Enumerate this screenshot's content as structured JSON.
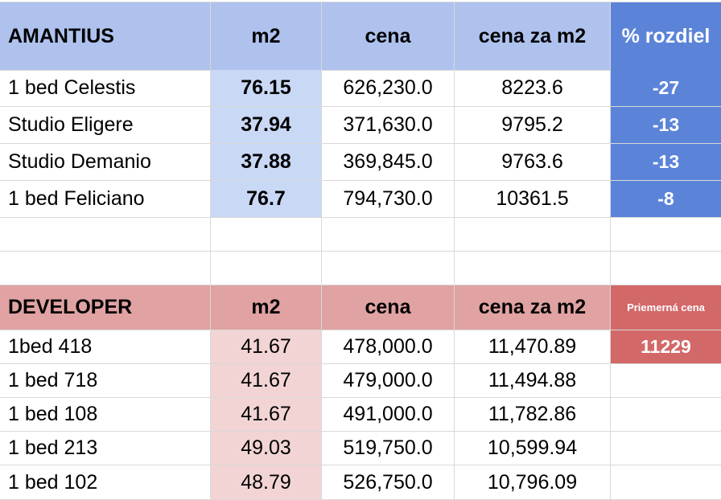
{
  "colors": {
    "amantius_header": "#aec2ed",
    "amantius_accent": "#5b84d9",
    "amantius_m2_cell": "#c9d8f5",
    "developer_header": "#e0a2a2",
    "developer_accent": "#d36868",
    "developer_m2_cell": "#f2d4d4",
    "gridline": "#d9d9d9"
  },
  "amantius": {
    "header": {
      "name": "AMANTIUS",
      "m2": "m2",
      "cena": "cena",
      "cena_za_m2": "cena za m2",
      "rozdiel": "% rozdiel"
    },
    "rows": [
      {
        "name": "1 bed Celestis",
        "m2": "76.15",
        "cena": "626,230.0",
        "cena_za_m2": "8223.6",
        "rozdiel": "-27"
      },
      {
        "name": "Studio Eligere",
        "m2": "37.94",
        "cena": "371,630.0",
        "cena_za_m2": "9795.2",
        "rozdiel": "-13"
      },
      {
        "name": "Studio Demanio",
        "m2": "37.88",
        "cena": "369,845.0",
        "cena_za_m2": "9763.6",
        "rozdiel": "-13"
      },
      {
        "name": "1 bed Feliciano",
        "m2": "76.7",
        "cena": "794,730.0",
        "cena_za_m2": "10361.5",
        "rozdiel": "-8"
      }
    ]
  },
  "developer": {
    "header": {
      "name": "DEVELOPER",
      "m2": "m2",
      "cena": "cena",
      "cena_za_m2": "cena za m2",
      "avg_label": "Priemerná cena"
    },
    "avg_value": "11229",
    "rows": [
      {
        "name": "1bed 418",
        "m2": "41.67",
        "cena": "478,000.0",
        "cena_za_m2": "11,470.89"
      },
      {
        "name": "1 bed 718",
        "m2": "41.67",
        "cena": "479,000.0",
        "cena_za_m2": "11,494.88"
      },
      {
        "name": "1 bed 108",
        "m2": "41.67",
        "cena": "491,000.0",
        "cena_za_m2": "11,782.86"
      },
      {
        "name": "1 bed 213",
        "m2": "49.03",
        "cena": "519,750.0",
        "cena_za_m2": "10,599.94"
      },
      {
        "name": "1 bed 102",
        "m2": "48.79",
        "cena": "526,750.0",
        "cena_za_m2": "10,796.09"
      }
    ]
  }
}
